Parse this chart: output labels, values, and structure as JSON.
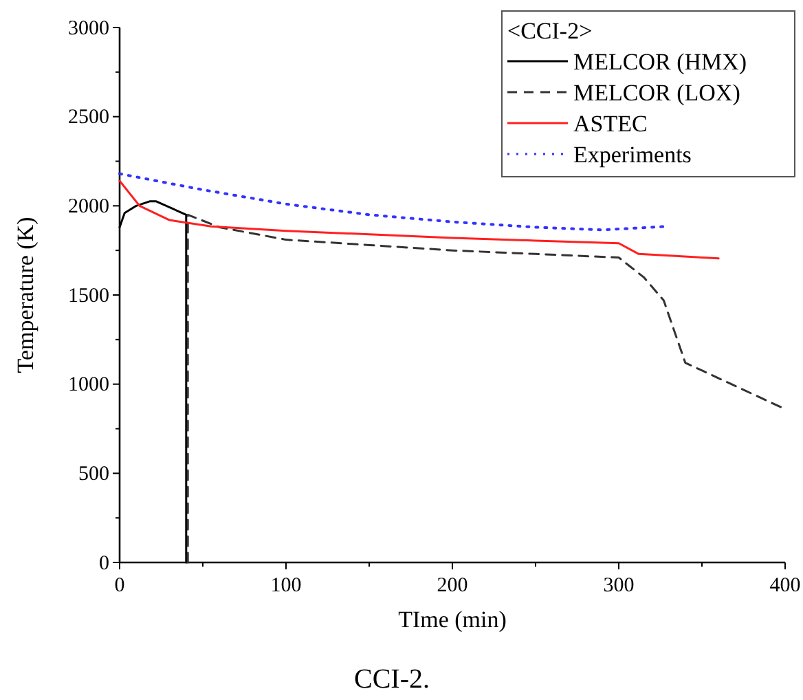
{
  "chart_data": {
    "type": "line",
    "xlabel": "TIme (min)",
    "ylabel": "Temperature (K)",
    "legend_title": "<CCI-2>",
    "legend": "top right",
    "grid": false,
    "marker": "none",
    "xlim": [
      0,
      400
    ],
    "ylim": [
      0,
      3000
    ],
    "xticks": [
      0,
      {
        "value": 50,
        "label": null
      },
      100,
      {
        "value": 150,
        "label": null
      },
      200,
      {
        "value": 250,
        "label": null
      },
      300,
      {
        "value": 350,
        "label": null
      },
      400
    ],
    "yticks": [
      0,
      {
        "value": 250,
        "label": null
      },
      500,
      {
        "value": 750,
        "label": null
      },
      1000,
      {
        "value": 1250,
        "label": null
      },
      1500,
      {
        "value": 1750,
        "label": null
      },
      2000,
      {
        "value": 2250,
        "label": null
      },
      2500,
      {
        "value": 2750,
        "label": null
      },
      3000
    ],
    "series": [
      {
        "name": "MELCOR (HMX)",
        "color": "#000000",
        "line_style": "solid",
        "x": [
          0,
          3,
          10,
          18,
          22,
          40,
          40
        ],
        "values": [
          1880,
          1960,
          2000,
          2025,
          2025,
          1950,
          0
        ]
      },
      {
        "name": "MELCOR (LOX)",
        "color": "#333333",
        "line_style": "dashed",
        "x": [
          41,
          41,
          60,
          100,
          150,
          200,
          250,
          300,
          315,
          327,
          340,
          400
        ],
        "values": [
          0,
          1950,
          1880,
          1810,
          1780,
          1750,
          1730,
          1710,
          1600,
          1470,
          1120,
          860
        ]
      },
      {
        "name": "ASTEC",
        "color": "#ff2020",
        "line_style": "solid",
        "x": [
          0,
          12,
          30,
          55,
          100,
          150,
          200,
          250,
          300,
          312,
          360
        ],
        "values": [
          2140,
          2000,
          1920,
          1885,
          1860,
          1840,
          1820,
          1805,
          1790,
          1730,
          1705
        ]
      },
      {
        "name": "Experiments",
        "color": "#3333ff",
        "line_style": "dotted",
        "x": [
          0,
          50,
          100,
          150,
          200,
          250,
          290,
          330
        ],
        "values": [
          2180,
          2090,
          2010,
          1950,
          1910,
          1880,
          1865,
          1885
        ]
      }
    ],
    "annotations": [
      "CCI-2."
    ]
  }
}
